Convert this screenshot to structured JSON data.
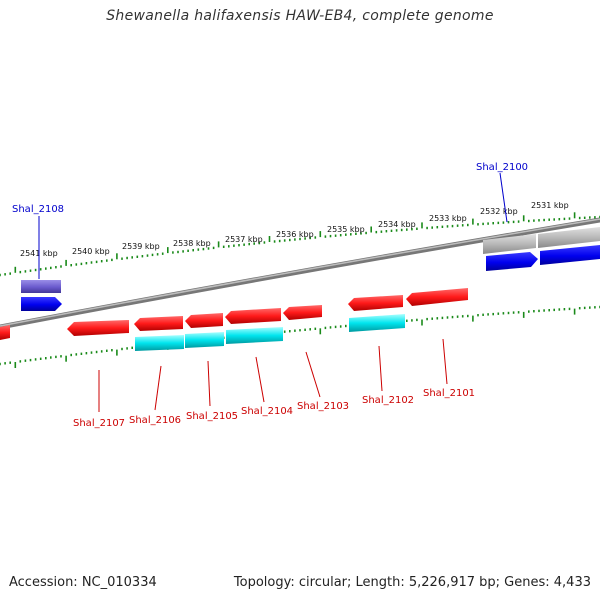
{
  "title": "Shewanella halifaxensis HAW-EB4, complete genome",
  "footer": {
    "accession": "Accession: NC_010334",
    "summary": "Topology: circular; Length: 5,226,917 bp; Genes: 4,433"
  },
  "colors": {
    "forward_gene": "#0000ee",
    "forward_gene_faded": "#6a5acd",
    "reverse_gene": "#ff1a1a",
    "reverse_cds": "#00e5ee",
    "backbone": "#777777",
    "tick": "#1a8a1a",
    "forward_label": "#0000cc",
    "reverse_label": "#cc0000"
  },
  "scale_labels": [
    "2541 kbp",
    "2540 kbp",
    "2539 kbp",
    "2538 kbp",
    "2537 kbp",
    "2536 kbp",
    "2535 kbp",
    "2534 kbp",
    "2533 kbp",
    "2532 kbp",
    "2531 kbp"
  ],
  "forward_labels": [
    "Shal_2108",
    "Shal_2100"
  ],
  "reverse_labels": [
    "Shal_2107",
    "Shal_2106",
    "Shal_2105",
    "Shal_2104",
    "Shal_2103",
    "Shal_2102",
    "Shal_2101"
  ]
}
